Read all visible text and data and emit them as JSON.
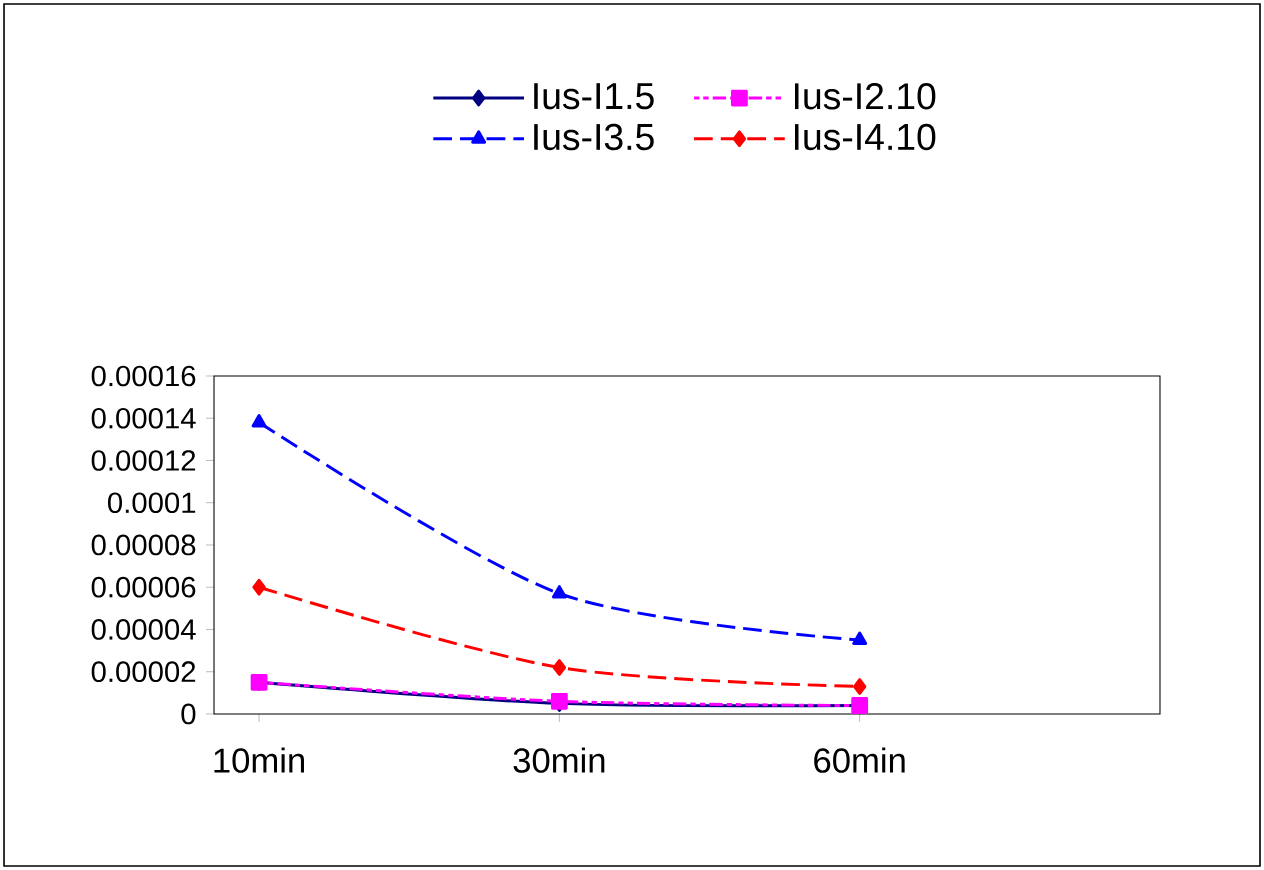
{
  "chart_data": {
    "type": "line",
    "categories": [
      "10min",
      "30min",
      "60min"
    ],
    "series": [
      {
        "name": "Ius-I1.5",
        "color": "#000080",
        "values": [
          1.5e-05,
          5e-06,
          4e-06
        ],
        "marker": "diamond",
        "line_style": "solid"
      },
      {
        "name": "Ius-I2.10",
        "color": "#ff00ff",
        "values": [
          1.5e-05,
          6e-06,
          4e-06
        ],
        "marker": "square",
        "line_style": "dotted"
      },
      {
        "name": "Ius-I3.5",
        "color": "#0000ff",
        "values": [
          0.000138,
          5.7e-05,
          3.5e-05
        ],
        "marker": "triangle",
        "line_style": "dashed"
      },
      {
        "name": "Ius-I4.10",
        "color": "#ff0000",
        "values": [
          6e-05,
          2.2e-05,
          1.3e-05
        ],
        "marker": "diamond",
        "line_style": "dashed"
      }
    ],
    "ylim": [
      0,
      0.00016
    ],
    "yticks": [
      {
        "value": 0,
        "label": "0"
      },
      {
        "value": 2e-05,
        "label": "0.00002"
      },
      {
        "value": 4e-05,
        "label": "0.00004"
      },
      {
        "value": 6e-05,
        "label": "0.00006"
      },
      {
        "value": 8e-05,
        "label": "0.00008"
      },
      {
        "value": 0.0001,
        "label": "0.0001"
      },
      {
        "value": 0.00012,
        "label": "0.00012"
      },
      {
        "value": 0.00014,
        "label": "0.00014"
      },
      {
        "value": 0.00016,
        "label": "0.00016"
      }
    ],
    "grid": false,
    "legend": "top"
  }
}
